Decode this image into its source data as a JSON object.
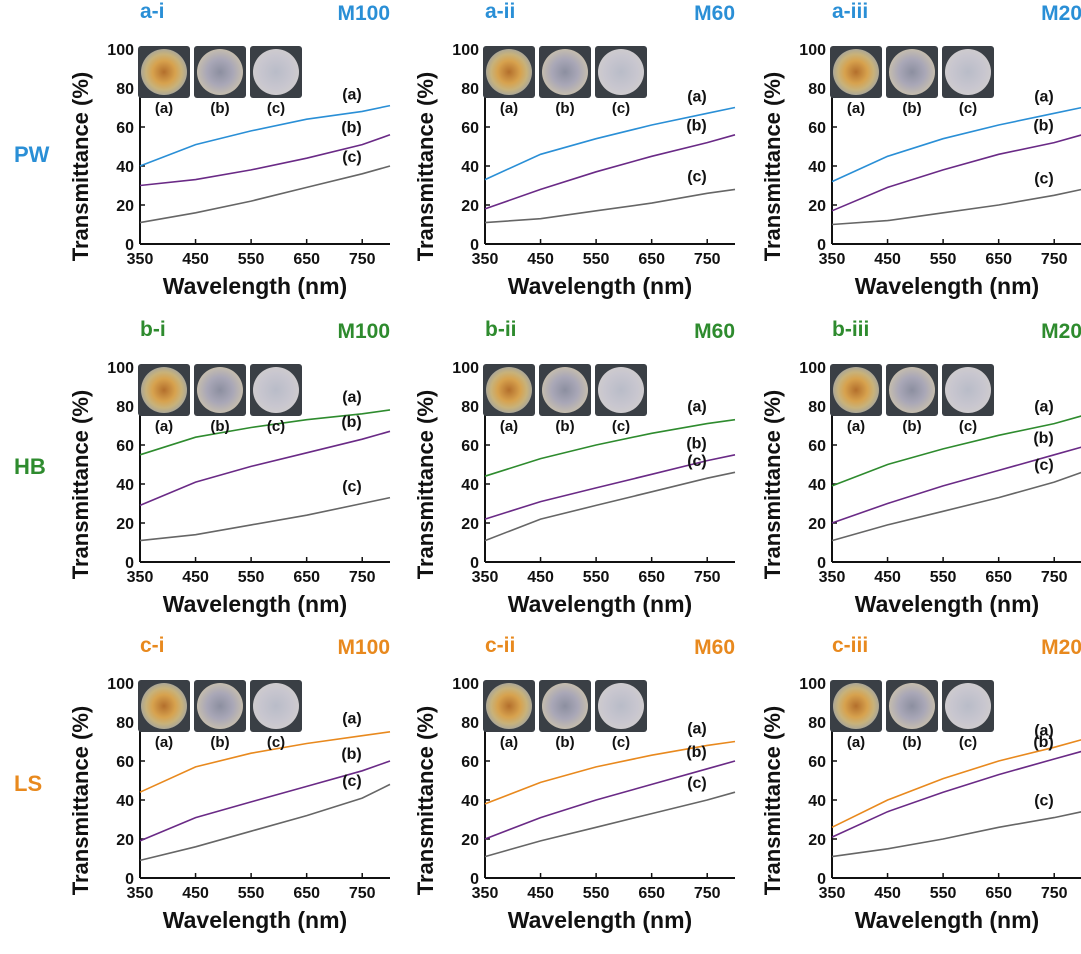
{
  "colors": {
    "PW": "#2a8fd6",
    "HB": "#2e8b2e",
    "LS": "#e8891e",
    "purple": "#6a2a86",
    "gray": "#666666"
  },
  "rows": [
    {
      "label": "PW",
      "color_key": "PW"
    },
    {
      "label": "HB",
      "color_key": "HB"
    },
    {
      "label": "LS",
      "color_key": "LS"
    }
  ],
  "axis": {
    "xlabel": "Wavelength (nm)",
    "ylabel": "Transmittance (%)",
    "xticks": [
      "350",
      "450",
      "550",
      "650",
      "750"
    ],
    "yticks": [
      "0",
      "20",
      "40",
      "60",
      "80",
      "100"
    ]
  },
  "thumb_captions": [
    "(a)",
    "(b)",
    "(c)"
  ],
  "chart_data": [
    {
      "type": "line",
      "panel": "a-i",
      "title": "M100",
      "row": "PW",
      "xlabel": "Wavelength (nm)",
      "ylabel": "Transmittance (%)",
      "xlim": [
        350,
        800
      ],
      "ylim": [
        0,
        100
      ],
      "series": [
        {
          "name": "(a)",
          "x": [
            350,
            450,
            550,
            650,
            750,
            800
          ],
          "y": [
            40,
            51,
            58,
            64,
            68,
            71
          ]
        },
        {
          "name": "(b)",
          "x": [
            350,
            450,
            550,
            650,
            750,
            800
          ],
          "y": [
            30,
            33,
            38,
            44,
            51,
            56
          ]
        },
        {
          "name": "(c)",
          "x": [
            350,
            450,
            550,
            650,
            750,
            800
          ],
          "y": [
            11,
            16,
            22,
            29,
            36,
            40
          ]
        }
      ]
    },
    {
      "type": "line",
      "panel": "a-ii",
      "title": "M60",
      "row": "PW",
      "xlabel": "Wavelength (nm)",
      "ylabel": "Transmittance (%)",
      "xlim": [
        350,
        800
      ],
      "ylim": [
        0,
        100
      ],
      "series": [
        {
          "name": "(a)",
          "x": [
            350,
            450,
            550,
            650,
            750,
            800
          ],
          "y": [
            33,
            46,
            54,
            61,
            67,
            70
          ]
        },
        {
          "name": "(b)",
          "x": [
            350,
            450,
            550,
            650,
            750,
            800
          ],
          "y": [
            18,
            28,
            37,
            45,
            52,
            56
          ]
        },
        {
          "name": "(c)",
          "x": [
            350,
            450,
            550,
            650,
            750,
            800
          ],
          "y": [
            11,
            13,
            17,
            21,
            26,
            28
          ]
        }
      ]
    },
    {
      "type": "line",
      "panel": "a-iii",
      "title": "M20",
      "row": "PW",
      "xlabel": "Wavelength (nm)",
      "ylabel": "Transmittance (%)",
      "xlim": [
        350,
        800
      ],
      "ylim": [
        0,
        100
      ],
      "series": [
        {
          "name": "(a)",
          "x": [
            350,
            450,
            550,
            650,
            750,
            800
          ],
          "y": [
            32,
            45,
            54,
            61,
            67,
            70
          ]
        },
        {
          "name": "(b)",
          "x": [
            350,
            450,
            550,
            650,
            750,
            800
          ],
          "y": [
            17,
            29,
            38,
            46,
            52,
            56
          ]
        },
        {
          "name": "(c)",
          "x": [
            350,
            450,
            550,
            650,
            750,
            800
          ],
          "y": [
            10,
            12,
            16,
            20,
            25,
            28
          ]
        }
      ]
    },
    {
      "type": "line",
      "panel": "b-i",
      "title": "M100",
      "row": "HB",
      "xlabel": "Wavelength (nm)",
      "ylabel": "Transmittance (%)",
      "xlim": [
        350,
        800
      ],
      "ylim": [
        0,
        100
      ],
      "series": [
        {
          "name": "(a)",
          "x": [
            350,
            450,
            550,
            650,
            750,
            800
          ],
          "y": [
            55,
            64,
            69,
            73,
            76,
            78
          ]
        },
        {
          "name": "(b)",
          "x": [
            350,
            450,
            550,
            650,
            750,
            800
          ],
          "y": [
            29,
            41,
            49,
            56,
            63,
            67
          ]
        },
        {
          "name": "(c)",
          "x": [
            350,
            450,
            550,
            650,
            750,
            800
          ],
          "y": [
            11,
            14,
            19,
            24,
            30,
            33
          ]
        }
      ]
    },
    {
      "type": "line",
      "panel": "b-ii",
      "title": "M60",
      "row": "HB",
      "xlabel": "Wavelength (nm)",
      "ylabel": "Transmittance (%)",
      "xlim": [
        350,
        800
      ],
      "ylim": [
        0,
        100
      ],
      "series": [
        {
          "name": "(a)",
          "x": [
            350,
            450,
            550,
            650,
            750,
            800
          ],
          "y": [
            44,
            53,
            60,
            66,
            71,
            73
          ]
        },
        {
          "name": "(b)",
          "x": [
            350,
            450,
            550,
            650,
            750,
            800
          ],
          "y": [
            22,
            31,
            38,
            45,
            52,
            55
          ]
        },
        {
          "name": "(c)",
          "x": [
            350,
            450,
            550,
            650,
            750,
            800
          ],
          "y": [
            11,
            22,
            29,
            36,
            43,
            46
          ]
        }
      ]
    },
    {
      "type": "line",
      "panel": "b-iii",
      "title": "M20",
      "row": "HB",
      "xlabel": "Wavelength (nm)",
      "ylabel": "Transmittance (%)",
      "xlim": [
        350,
        800
      ],
      "ylim": [
        0,
        100
      ],
      "series": [
        {
          "name": "(a)",
          "x": [
            350,
            450,
            550,
            650,
            750,
            800
          ],
          "y": [
            39,
            50,
            58,
            65,
            71,
            75
          ]
        },
        {
          "name": "(b)",
          "x": [
            350,
            450,
            550,
            650,
            750,
            800
          ],
          "y": [
            20,
            30,
            39,
            47,
            55,
            59
          ]
        },
        {
          "name": "(c)",
          "x": [
            350,
            450,
            550,
            650,
            750,
            800
          ],
          "y": [
            11,
            19,
            26,
            33,
            41,
            46
          ]
        }
      ]
    },
    {
      "type": "line",
      "panel": "c-i",
      "title": "M100",
      "row": "LS",
      "xlabel": "Wavelength (nm)",
      "ylabel": "Transmittance (%)",
      "xlim": [
        350,
        800
      ],
      "ylim": [
        0,
        100
      ],
      "series": [
        {
          "name": "(a)",
          "x": [
            350,
            450,
            550,
            650,
            750,
            800
          ],
          "y": [
            44,
            57,
            64,
            69,
            73,
            75
          ]
        },
        {
          "name": "(b)",
          "x": [
            350,
            450,
            550,
            650,
            750,
            800
          ],
          "y": [
            19,
            31,
            39,
            47,
            55,
            60
          ]
        },
        {
          "name": "(c)",
          "x": [
            350,
            450,
            550,
            650,
            750,
            800
          ],
          "y": [
            9,
            16,
            24,
            32,
            41,
            48
          ]
        }
      ]
    },
    {
      "type": "line",
      "panel": "c-ii",
      "title": "M60",
      "row": "LS",
      "xlabel": "Wavelength (nm)",
      "ylabel": "Transmittance (%)",
      "xlim": [
        350,
        800
      ],
      "ylim": [
        0,
        100
      ],
      "series": [
        {
          "name": "(a)",
          "x": [
            350,
            450,
            550,
            650,
            750,
            800
          ],
          "y": [
            38,
            49,
            57,
            63,
            68,
            70
          ]
        },
        {
          "name": "(b)",
          "x": [
            350,
            450,
            550,
            650,
            750,
            800
          ],
          "y": [
            20,
            31,
            40,
            48,
            56,
            60
          ]
        },
        {
          "name": "(c)",
          "x": [
            350,
            450,
            550,
            650,
            750,
            800
          ],
          "y": [
            11,
            19,
            26,
            33,
            40,
            44
          ]
        }
      ]
    },
    {
      "type": "line",
      "panel": "c-iii",
      "title": "M20",
      "row": "LS",
      "xlabel": "Wavelength (nm)",
      "ylabel": "Transmittance (%)",
      "xlim": [
        350,
        800
      ],
      "ylim": [
        0,
        100
      ],
      "series": [
        {
          "name": "(a)",
          "x": [
            350,
            450,
            550,
            650,
            750,
            800
          ],
          "y": [
            26,
            40,
            51,
            60,
            67,
            71
          ]
        },
        {
          "name": "(b)",
          "x": [
            350,
            450,
            550,
            650,
            750,
            800
          ],
          "y": [
            21,
            34,
            44,
            53,
            61,
            65
          ]
        },
        {
          "name": "(c)",
          "x": [
            350,
            450,
            550,
            650,
            750,
            800
          ],
          "y": [
            11,
            15,
            20,
            26,
            31,
            34
          ]
        }
      ]
    }
  ]
}
